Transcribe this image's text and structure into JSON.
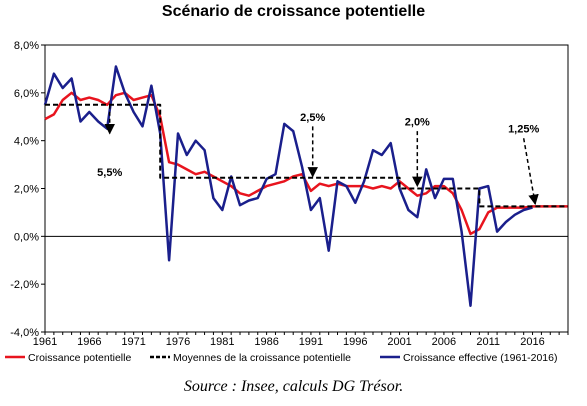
{
  "title": "Scénario de croissance potentielle",
  "source": "Source : Insee, calculs DG Trésor.",
  "chart_data": {
    "type": "line",
    "title": "Scénario de croissance potentielle",
    "ylim": [
      -4,
      8
    ],
    "xlim": [
      1961,
      2020
    ],
    "y_ticks": [
      "8,0%",
      "6,0%",
      "4,0%",
      "2,0%",
      "0,0%",
      "-2,0%",
      "-4,0%"
    ],
    "y_tick_values": [
      8,
      6,
      4,
      2,
      0,
      -2,
      -4
    ],
    "x_ticks": [
      "1961",
      "1966",
      "1971",
      "1976",
      "1981",
      "1986",
      "1991",
      "1996",
      "2001",
      "2006",
      "2011",
      "2016"
    ],
    "x_tick_values": [
      1961,
      1966,
      1971,
      1976,
      1981,
      1986,
      1991,
      1996,
      2001,
      2006,
      2011,
      2016
    ],
    "grid": false,
    "legend_position": "bottom",
    "series": [
      {
        "name": "Croissance potentielle",
        "color": "#e8141e",
        "style": "solid",
        "x": [
          1961,
          1962,
          1963,
          1964,
          1965,
          1966,
          1967,
          1968,
          1969,
          1970,
          1971,
          1972,
          1973,
          1974,
          1975,
          1976,
          1977,
          1978,
          1979,
          1980,
          1981,
          1982,
          1983,
          1984,
          1985,
          1986,
          1987,
          1988,
          1989,
          1990,
          1991,
          1992,
          1993,
          1994,
          1995,
          1996,
          1997,
          1998,
          1999,
          2000,
          2001,
          2002,
          2003,
          2004,
          2005,
          2006,
          2007,
          2008,
          2009,
          2010,
          2011,
          2012,
          2013,
          2014,
          2015,
          2016,
          2017,
          2018,
          2019,
          2020
        ],
        "values": [
          4.9,
          5.1,
          5.7,
          6.0,
          5.7,
          5.8,
          5.7,
          5.5,
          5.9,
          6.0,
          5.7,
          5.8,
          5.9,
          5.0,
          3.1,
          3.0,
          2.8,
          2.6,
          2.7,
          2.5,
          2.3,
          2.1,
          1.8,
          1.7,
          1.9,
          2.1,
          2.2,
          2.3,
          2.5,
          2.6,
          1.9,
          2.2,
          2.1,
          2.2,
          2.1,
          2.1,
          2.1,
          2.0,
          2.1,
          2.0,
          2.3,
          2.0,
          1.7,
          1.8,
          2.1,
          2.1,
          1.8,
          1.1,
          0.1,
          0.3,
          1.0,
          1.2,
          1.2,
          1.2,
          1.2,
          1.25,
          1.25,
          1.25,
          1.25,
          1.25
        ]
      },
      {
        "name": "Moyennes de la croissance potentielle",
        "color": "#000000",
        "style": "dashed",
        "x": [
          1961,
          1973,
          1973,
          1974,
          1974,
          1990,
          1990,
          2001,
          2001,
          2010,
          2010,
          2020
        ],
        "values": [
          5.5,
          5.5,
          5.5,
          5.5,
          2.45,
          2.45,
          2.45,
          2.45,
          2.0,
          2.0,
          1.25,
          1.25
        ]
      },
      {
        "name": "Croissance effective (1961-2016)",
        "color": "#1a1f8c",
        "style": "solid",
        "x": [
          1961,
          1962,
          1963,
          1964,
          1965,
          1966,
          1967,
          1968,
          1969,
          1970,
          1971,
          1972,
          1973,
          1974,
          1975,
          1976,
          1977,
          1978,
          1979,
          1980,
          1981,
          1982,
          1983,
          1984,
          1985,
          1986,
          1987,
          1988,
          1989,
          1990,
          1991,
          1992,
          1993,
          1994,
          1995,
          1996,
          1997,
          1998,
          1999,
          2000,
          2001,
          2002,
          2003,
          2004,
          2005,
          2006,
          2007,
          2008,
          2009,
          2010,
          2011,
          2012,
          2013,
          2014,
          2015,
          2016
        ],
        "values": [
          5.5,
          6.8,
          6.2,
          6.6,
          4.8,
          5.2,
          4.8,
          4.5,
          7.1,
          6.0,
          5.2,
          4.6,
          6.3,
          4.3,
          -1.0,
          4.3,
          3.4,
          4.0,
          3.6,
          1.6,
          1.1,
          2.5,
          1.3,
          1.5,
          1.6,
          2.4,
          2.6,
          4.7,
          4.4,
          2.9,
          1.1,
          1.6,
          -0.6,
          2.3,
          2.1,
          1.4,
          2.3,
          3.6,
          3.4,
          3.9,
          2.0,
          1.1,
          0.8,
          2.8,
          1.6,
          2.4,
          2.4,
          0.2,
          -2.9,
          2.0,
          2.1,
          0.2,
          0.6,
          0.9,
          1.1,
          1.2
        ]
      }
    ],
    "annotations": [
      {
        "label": "5,5%",
        "from": [
          1968.3,
          5.5
        ],
        "to": [
          1968.3,
          4.3
        ],
        "text_at": [
          1968.3,
          2.7
        ]
      },
      {
        "label": "2,5%",
        "from": [
          1991.2,
          4.6
        ],
        "to": [
          1991.2,
          2.5
        ],
        "text_at": [
          1991.2,
          5.0
        ]
      },
      {
        "label": "2,0%",
        "from": [
          2003.0,
          4.4
        ],
        "to": [
          2003.0,
          2.1
        ],
        "text_at": [
          2003.0,
          4.8
        ]
      },
      {
        "label": "1,25%",
        "from": [
          2015.0,
          4.1
        ],
        "to": [
          2016.3,
          1.35
        ],
        "text_at": [
          2015.0,
          4.5
        ]
      }
    ]
  }
}
